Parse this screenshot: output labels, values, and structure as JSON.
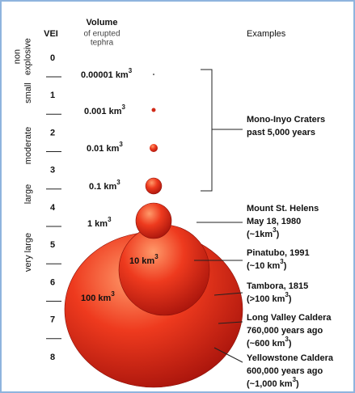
{
  "header": {
    "vei": "VEI",
    "volume": "Volume",
    "volume_note": [
      "of erupted",
      "tephra"
    ],
    "examples": "Examples"
  },
  "categories": [
    [
      "non",
      "explosive"
    ],
    [
      "small"
    ],
    [
      "moderate"
    ],
    [
      "large"
    ],
    [
      "very large"
    ]
  ],
  "vei": [
    "0",
    "1",
    "2",
    "3",
    "4",
    "5",
    "6",
    "7",
    "8"
  ],
  "volumes": [
    {
      "text": "0.00001 km",
      "sup": "3"
    },
    {
      "text": "0.001 km",
      "sup": "3"
    },
    {
      "text": "0.01 km",
      "sup": "3"
    },
    {
      "text": "0.1 km",
      "sup": "3"
    },
    {
      "text": "1 km",
      "sup": "3"
    },
    {
      "text": "10 km",
      "sup": "3"
    },
    {
      "text": "100 km",
      "sup": "3"
    }
  ],
  "examples": [
    [
      {
        "text": "Mono-Inyo Craters"
      },
      {
        "text": "past 5,000 years"
      }
    ],
    [
      {
        "text": "Mount St. Helens"
      },
      {
        "text": "May 18, 1980"
      },
      {
        "text": "(~1km",
        "sup": "3",
        "after": ")"
      }
    ],
    [
      {
        "text": "Pinatubo, 1991"
      },
      {
        "text": "(~10 km",
        "sup": "3",
        "after": ")"
      }
    ],
    [
      {
        "text": "Tambora, 1815"
      },
      {
        "text": "(>100 km",
        "sup": "3",
        "after": ")"
      }
    ],
    [
      {
        "text": "Long Valley Caldera"
      },
      {
        "text": "760,000 years ago"
      },
      {
        "text": "(~600 km",
        "sup": "3",
        "after": ")"
      }
    ],
    [
      {
        "text": "Yellowstone Caldera"
      },
      {
        "text": "600,000 years ago"
      },
      {
        "text": "(~1,000 km",
        "sup": "3",
        "after": ")"
      }
    ]
  ]
}
